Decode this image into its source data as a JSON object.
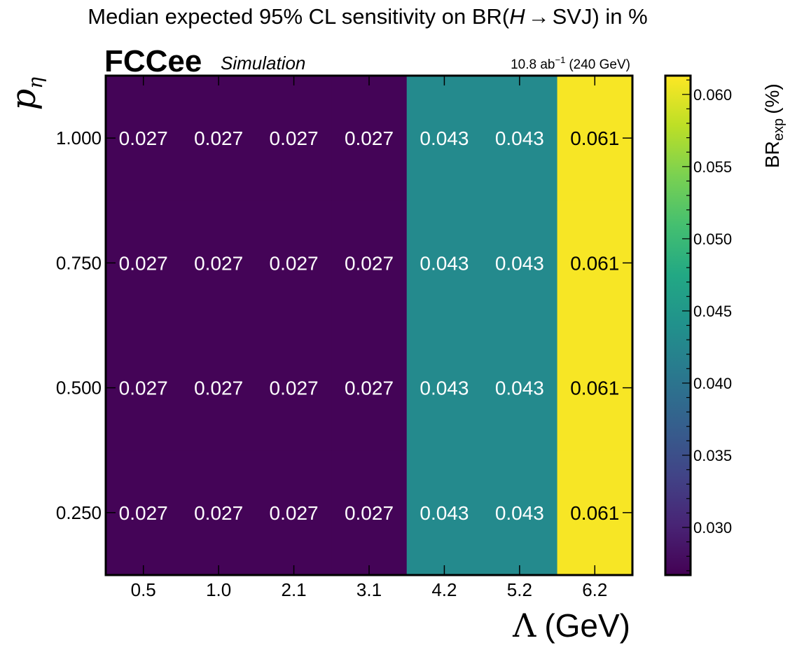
{
  "chart_data": {
    "type": "heatmap",
    "title_prefix": "Median expected 95% CL sensitivity on BR(",
    "title_italic": "H",
    "title_arrow": "→",
    "title_suffix": "SVJ) in %",
    "brand": "FCCee",
    "brand_sub": "Simulation",
    "lumi_prefix": "10.8 ab",
    "lumi_exp": "−1",
    "lumi_suffix": "(240 GeV)",
    "xlabel_symbol": "Λ",
    "xlabel_unit": "(GeV)",
    "ylabel_symbol": "p",
    "ylabel_sub": "η",
    "colorbar_label_main": "BR",
    "colorbar_label_sub": "exp",
    "colorbar_label_unit": "(%)",
    "x_categories": [
      "0.5",
      "1.0",
      "2.1",
      "3.1",
      "4.2",
      "5.2",
      "6.2"
    ],
    "y_categories": [
      "0.250",
      "0.500",
      "0.750",
      "1.000"
    ],
    "values": [
      [
        0.027,
        0.027,
        0.027,
        0.027,
        0.043,
        0.043,
        0.061
      ],
      [
        0.027,
        0.027,
        0.027,
        0.027,
        0.043,
        0.043,
        0.061
      ],
      [
        0.027,
        0.027,
        0.027,
        0.027,
        0.043,
        0.043,
        0.061
      ],
      [
        0.027,
        0.027,
        0.027,
        0.027,
        0.043,
        0.043,
        0.061
      ]
    ],
    "labels": [
      [
        "0.027",
        "0.027",
        "0.027",
        "0.027",
        "0.043",
        "0.043",
        "0.061"
      ],
      [
        "0.027",
        "0.027",
        "0.027",
        "0.027",
        "0.043",
        "0.043",
        "0.061"
      ],
      [
        "0.027",
        "0.027",
        "0.027",
        "0.027",
        "0.043",
        "0.043",
        "0.061"
      ],
      [
        "0.027",
        "0.027",
        "0.027",
        "0.027",
        "0.043",
        "0.043",
        "0.061"
      ]
    ],
    "colormap": "viridis",
    "color_range": [
      0.0267,
      0.0613
    ],
    "colorbar_ticks": [
      "0.030",
      "0.035",
      "0.040",
      "0.045",
      "0.050",
      "0.055",
      "0.060"
    ],
    "colorbar_tick_values": [
      0.03,
      0.035,
      0.04,
      0.045,
      0.05,
      0.055,
      0.06
    ],
    "colors": {
      "low": "#440154",
      "mid": "#21918c",
      "high": "#fde725",
      "label_light": "#ffffff",
      "label_dark": "#000000"
    }
  }
}
